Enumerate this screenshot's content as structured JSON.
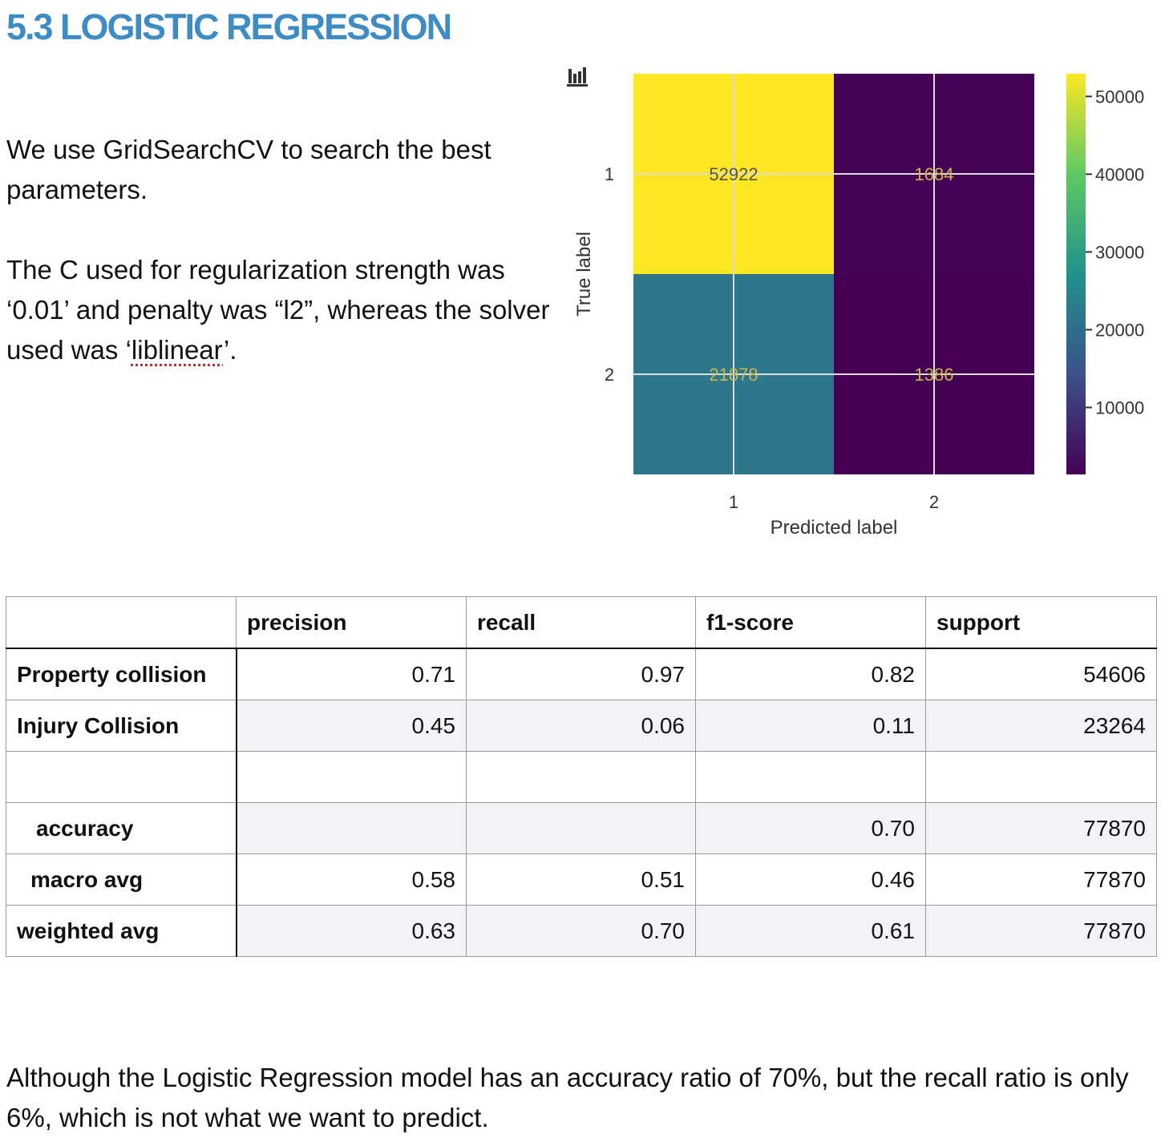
{
  "heading": "5.3 LOGISTIC REGRESSION",
  "intro": {
    "p1": "We use GridSearchCV to search the best parameters.",
    "p2_before": "The C used for regularization strength was ‘0.01’ and penalty was “l2”, whereas the solver used was ‘",
    "p2_word": "liblinear",
    "p2_after": "’."
  },
  "chart_icon": "bar-chart-icon",
  "chart_data": {
    "type": "heatmap",
    "row_labels": [
      "1",
      "2"
    ],
    "col_labels": [
      "1",
      "2"
    ],
    "values": [
      [
        52922,
        1684
      ],
      [
        21878,
        1386
      ]
    ],
    "xlabel": "Predicted label",
    "ylabel": "True label",
    "colorbar_ticks": [
      "50000",
      "40000",
      "30000",
      "20000",
      "10000"
    ],
    "colorbar_range": [
      1386,
      52922
    ],
    "colormap": "viridis",
    "colors": {
      "high": "#fde725",
      "mid": "#2a788e",
      "low": "#440154",
      "value_text": "#c9b64a"
    },
    "grid": true
  },
  "table": {
    "headers": [
      "",
      "precision",
      "recall",
      "f1-score",
      "support"
    ],
    "rows": [
      {
        "label": "Property collision",
        "values": [
          "0.71",
          "0.97",
          "0.82",
          "54606"
        ]
      },
      {
        "label": "Injury Collision",
        "values": [
          "0.45",
          "0.06",
          "0.11",
          "23264"
        ]
      },
      {
        "label": "",
        "values": [
          "",
          "",
          "",
          ""
        ]
      },
      {
        "label": "accuracy",
        "values": [
          "",
          "",
          "0.70",
          "77870"
        ]
      },
      {
        "label": "macro avg",
        "values": [
          "0.58",
          "0.51",
          "0.46",
          "77870"
        ]
      },
      {
        "label": "weighted avg",
        "values": [
          "0.63",
          "0.70",
          "0.61",
          "77870"
        ]
      }
    ]
  },
  "conclusion": "Although the Logistic Regression model has an accuracy ratio of 70%, but the recall ratio is only 6%, which is not what we want to predict."
}
